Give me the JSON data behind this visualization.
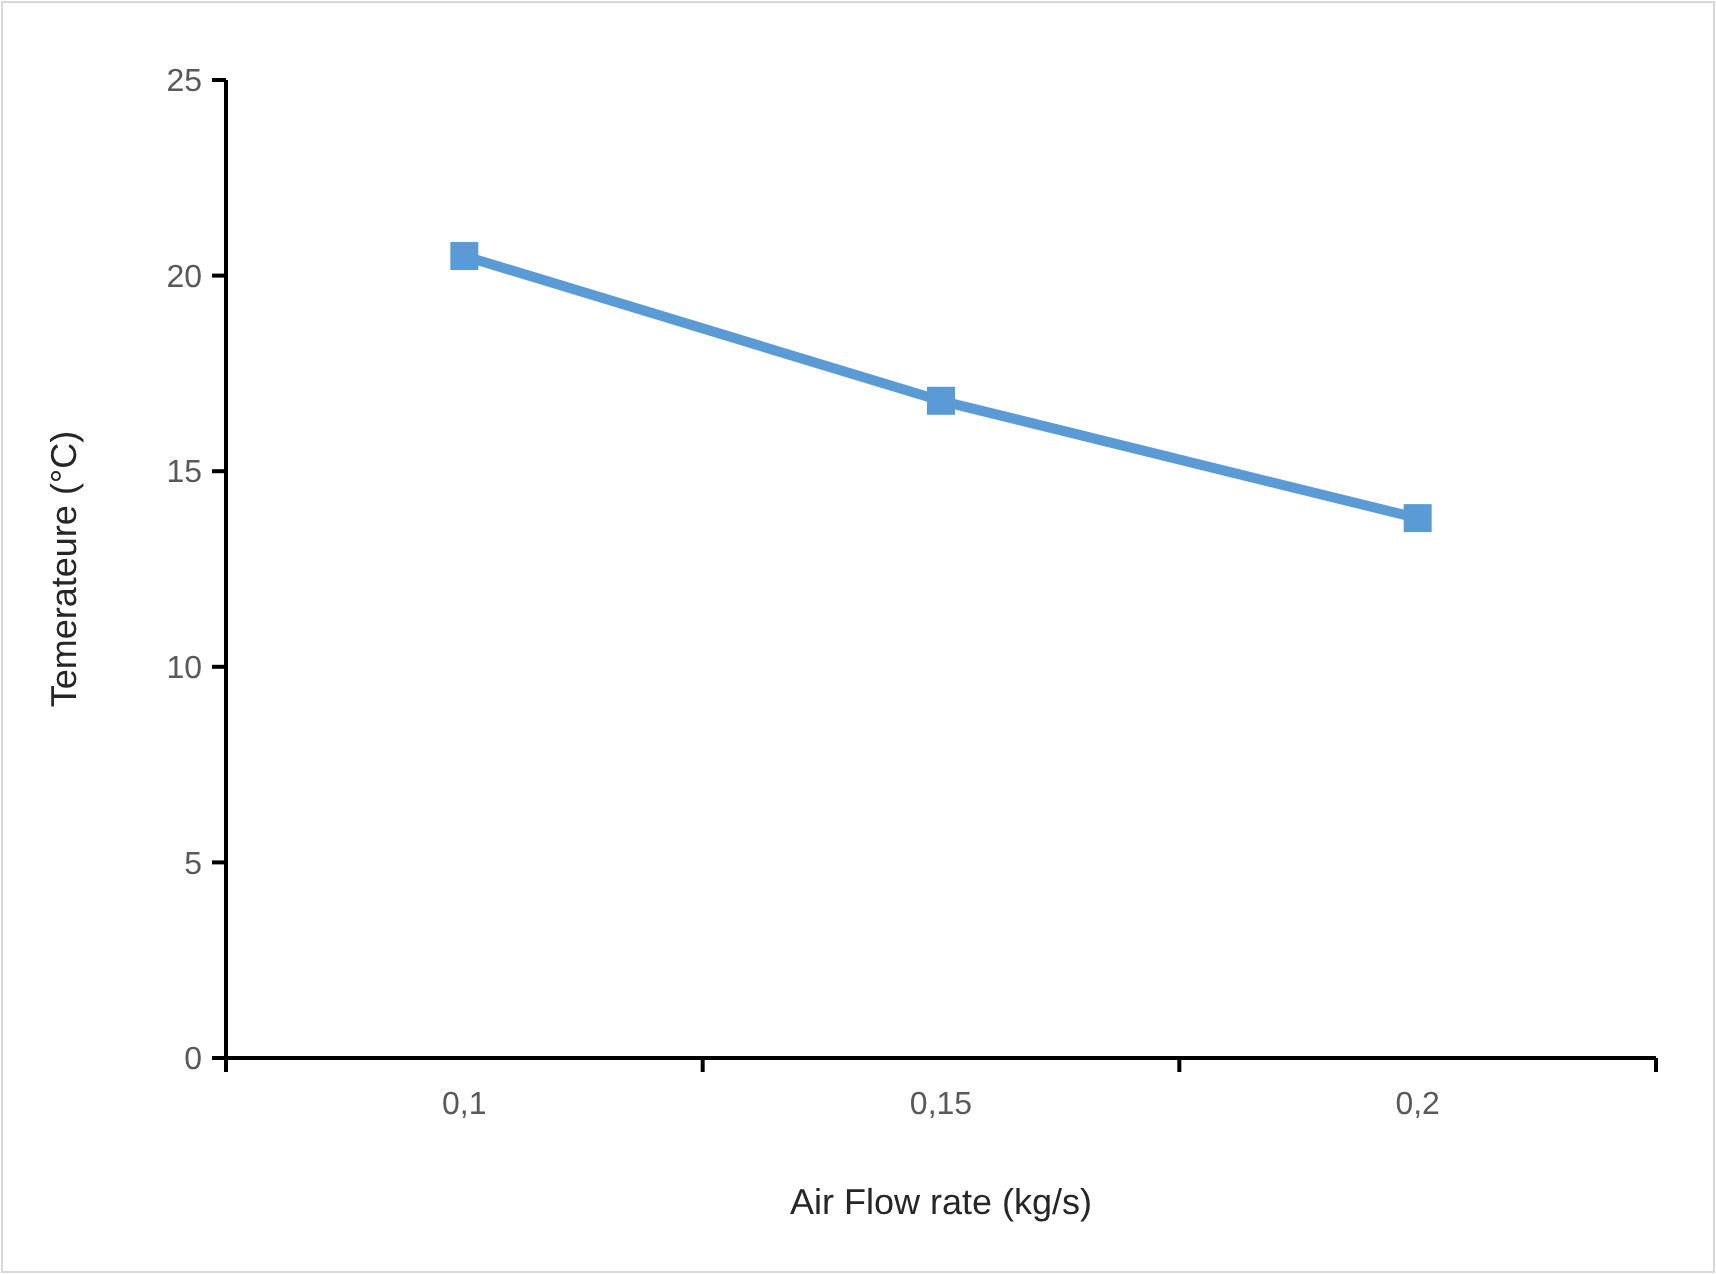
{
  "chart_data": {
    "type": "line",
    "xlabel": "Air Flow rate (kg/s)",
    "ylabel": "Temerateure (°C)",
    "categories": [
      "0,1",
      "0,15",
      "0,2"
    ],
    "series": [
      {
        "color": "#5b9bd5",
        "values": [
          20.5,
          16.8,
          13.8
        ]
      }
    ],
    "ylim": [
      0,
      25
    ],
    "yticks": [
      0,
      5,
      10,
      15,
      20,
      25
    ],
    "marker": "square",
    "line_style": "solid"
  }
}
